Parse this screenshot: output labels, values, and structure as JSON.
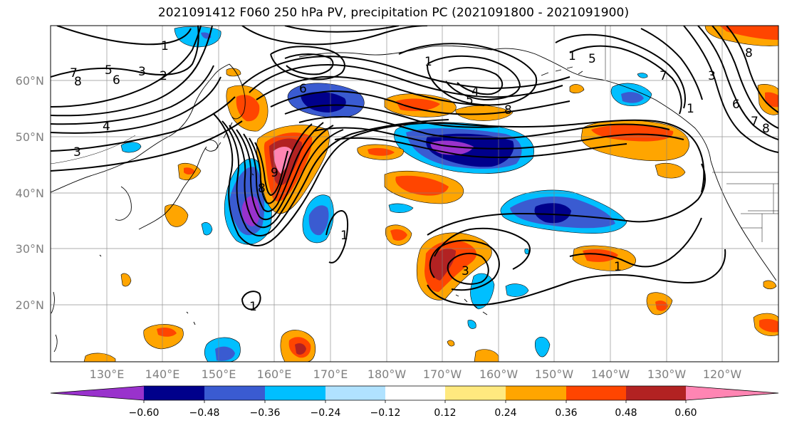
{
  "title": "2021091412 F060 250 hPa PV, precipitation PC (2021091800 - 2021091900)",
  "map": {
    "lat_ticks": [
      "60°N",
      "50°N",
      "40°N",
      "30°N",
      "20°N"
    ],
    "lon_ticks": [
      "130°E",
      "140°E",
      "150°E",
      "160°E",
      "170°E",
      "180°W",
      "170°W",
      "160°W",
      "150°W",
      "140°W",
      "130°W",
      "120°W"
    ],
    "contour_labels": [
      "7",
      "8",
      "6",
      "5",
      "3",
      "2",
      "1",
      "4",
      "3",
      "8",
      "9",
      "6",
      "5",
      "4",
      "8",
      "1",
      "3",
      "1",
      "1",
      "7",
      "8",
      "5",
      "1",
      "3",
      "6",
      "7",
      "8",
      "1",
      "1"
    ]
  },
  "colorbar": {
    "tick_labels": [
      "−0.60",
      "−0.48",
      "−0.36",
      "−0.24",
      "−0.12",
      "0.12",
      "0.24",
      "0.36",
      "0.48",
      "0.60"
    ],
    "colors": [
      "#9932cc",
      "#00008b",
      "#3a5bd1",
      "#00bfff",
      "#b0e2ff",
      "#ffffff",
      "#ffe97f",
      "#ffa500",
      "#ff4500",
      "#b22222",
      "#ff85b3"
    ]
  }
}
